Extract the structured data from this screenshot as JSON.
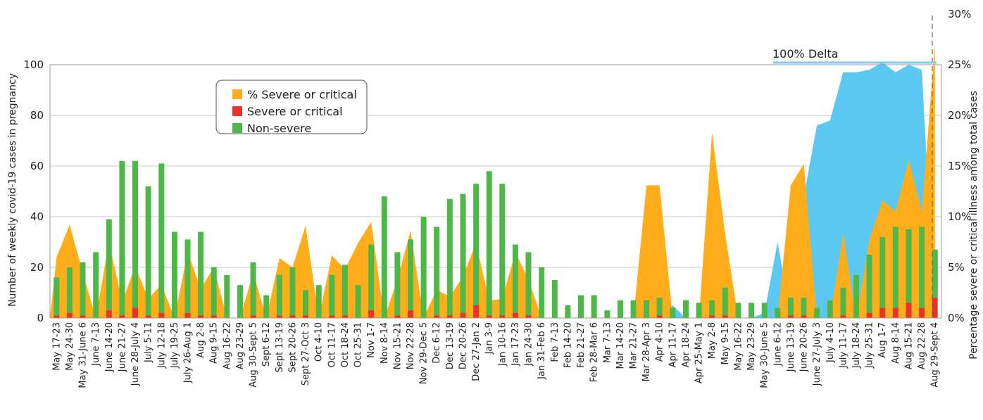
{
  "chart_data": {
    "type": "bar",
    "title": "",
    "xlabel": "",
    "ylabel": "Number of weekly covid-19 cases in pregnancy",
    "ylabel_right": "Percentage severe or critical illness among total cases",
    "ylim": [
      0,
      100
    ],
    "yticks": [
      "0",
      "20",
      "40",
      "60",
      "80",
      "100"
    ],
    "ylim_right": [
      0,
      30
    ],
    "yticks_right": [
      "0%",
      "5%",
      "10%",
      "15%",
      "20%",
      "25%",
      "30%"
    ],
    "grid": true,
    "legend_position": "top-left",
    "annotation": "100% Delta",
    "colors": {
      "pct_severe": "#ffad1a",
      "severe": "#e8332d",
      "non_severe": "#4db848",
      "delta": "#5bc8f2",
      "delta_line": "#7ecbed",
      "grid": "#c8c8c8",
      "frame": "#999999",
      "dashed": "#666666"
    },
    "legend": [
      {
        "label": "% Severe or critical",
        "color": "#ffad1a"
      },
      {
        "label": "Severe or critical",
        "color": "#e8332d"
      },
      {
        "label": "Non-severe",
        "color": "#4db848"
      }
    ],
    "categories": [
      "May 17-23",
      "May 24-30",
      "May 31-June 6",
      "June 7-13",
      "June 14-20",
      "June 21-27",
      "June 28-July 4",
      "July 5-11",
      "July 12-18",
      "July 19-25",
      "July 26-Aug 1",
      "Aug 2-8",
      "Aug 9-15",
      "Aug 16-22",
      "Aug 23-29",
      "Aug 30-Sept 5",
      "Sept 6-12",
      "Sept 13-19",
      "Sept 20-26",
      "Sept 27-Oct 3",
      "Oct 4-10",
      "Oct 11-17",
      "Oct 18-24",
      "Oct 25-31",
      "Nov 1-7",
      "Nov 8-14",
      "Nov 15-21",
      "Nov 22-28",
      "Nov 29-Dec 5",
      "Dec 6-12",
      "Dec 13-19",
      "Dec 20-26",
      "Dec 27-Jan 2",
      "Jan 3-9",
      "Jan 10-16",
      "Jan 17-23",
      "Jan 24-30",
      "Jan 31-Feb 6",
      "Feb 7-13",
      "Feb 14-20",
      "Feb 21-27",
      "Feb 28-Mar 6",
      "Mar 7-13",
      "Mar 14-20",
      "Mar 21-27",
      "Mar 28-Apr 3",
      "Apr 4-10",
      "Apr 11-17",
      "Apr 18-24",
      "Apr 25-May 1",
      "May 2-8",
      "May 9-15",
      "May 16-22",
      "May 23-29",
      "May 30-June 5",
      "June 6-12",
      "June 13-19",
      "June 20-26",
      "June 27-July 3",
      "July 4-10",
      "July 11-17",
      "July 18-24",
      "July 25-31",
      "Aug 1-7",
      "Aug 8-14",
      "Aug 15-21",
      "Aug 22-28",
      "Aug 29-Sept 4"
    ],
    "series": [
      {
        "name": "Non-severe",
        "values": [
          15,
          18,
          21,
          26,
          36,
          61,
          58,
          51,
          59,
          34,
          29,
          33,
          19,
          17,
          13,
          21,
          9,
          16,
          19,
          10,
          13,
          16,
          20,
          13,
          26,
          48,
          25,
          28,
          40,
          35,
          46,
          47,
          48,
          57,
          52,
          27,
          25,
          20,
          15,
          5,
          9,
          9,
          3,
          7,
          7,
          7,
          7,
          4,
          7,
          6,
          6,
          11,
          6,
          6,
          6,
          4,
          7,
          7,
          4,
          7,
          11,
          17,
          23,
          28,
          32,
          29,
          32,
          19
        ],
        "label": "Non-severe"
      },
      {
        "name": "Severe or critical",
        "values": [
          1,
          2,
          1,
          0,
          3,
          1,
          4,
          1,
          2,
          0,
          2,
          1,
          1,
          0,
          0,
          1,
          0,
          1,
          1,
          1,
          0,
          1,
          1,
          0,
          3,
          0,
          1,
          3,
          0,
          1,
          1,
          2,
          5,
          1,
          1,
          2,
          1,
          0,
          0,
          0,
          0,
          0,
          0,
          0,
          0,
          0,
          1,
          0,
          0,
          0,
          1,
          1,
          0,
          0,
          0,
          0,
          1,
          1,
          0,
          0,
          1,
          0,
          2,
          4,
          4,
          6,
          4,
          8
        ]
      },
      {
        "name": "% Severe or critical",
        "values": [
          6,
          9.2,
          4.5,
          0,
          7.6,
          1.6,
          5.1,
          1.9,
          3.3,
          0,
          6.5,
          2.9,
          5,
          0,
          0,
          4.5,
          0,
          5.9,
          5,
          9.1,
          0,
          6.2,
          4.8,
          7.4,
          9.5,
          0,
          3.8,
          8.6,
          0,
          2.8,
          2.1,
          4.1,
          7.4,
          1.7,
          1.9,
          6.5,
          3.8,
          0,
          0,
          0,
          0,
          0,
          0,
          0,
          0,
          13.1,
          13.1,
          0,
          0,
          0,
          18.3,
          8.3,
          0,
          0,
          0,
          0,
          13.1,
          15.2,
          0,
          0,
          8.3,
          0,
          7.7,
          11.6,
          10.5,
          15.6,
          10.5,
          27
        ]
      },
      {
        "name": "% Delta",
        "values": [
          0,
          0,
          0,
          0,
          0,
          0,
          0,
          0,
          0,
          0,
          0,
          0,
          0,
          0,
          0,
          0,
          0,
          0,
          0,
          0,
          0,
          0,
          0,
          0,
          0,
          0,
          0,
          0,
          0,
          0,
          0,
          0,
          0,
          0,
          0,
          0,
          0,
          0,
          0,
          0,
          0,
          0,
          0,
          0,
          0,
          0,
          0,
          5,
          0,
          0,
          0,
          0,
          0,
          0,
          2,
          30,
          0,
          48,
          76,
          78,
          97,
          97,
          98,
          101,
          97,
          100,
          98,
          0
        ]
      }
    ]
  }
}
